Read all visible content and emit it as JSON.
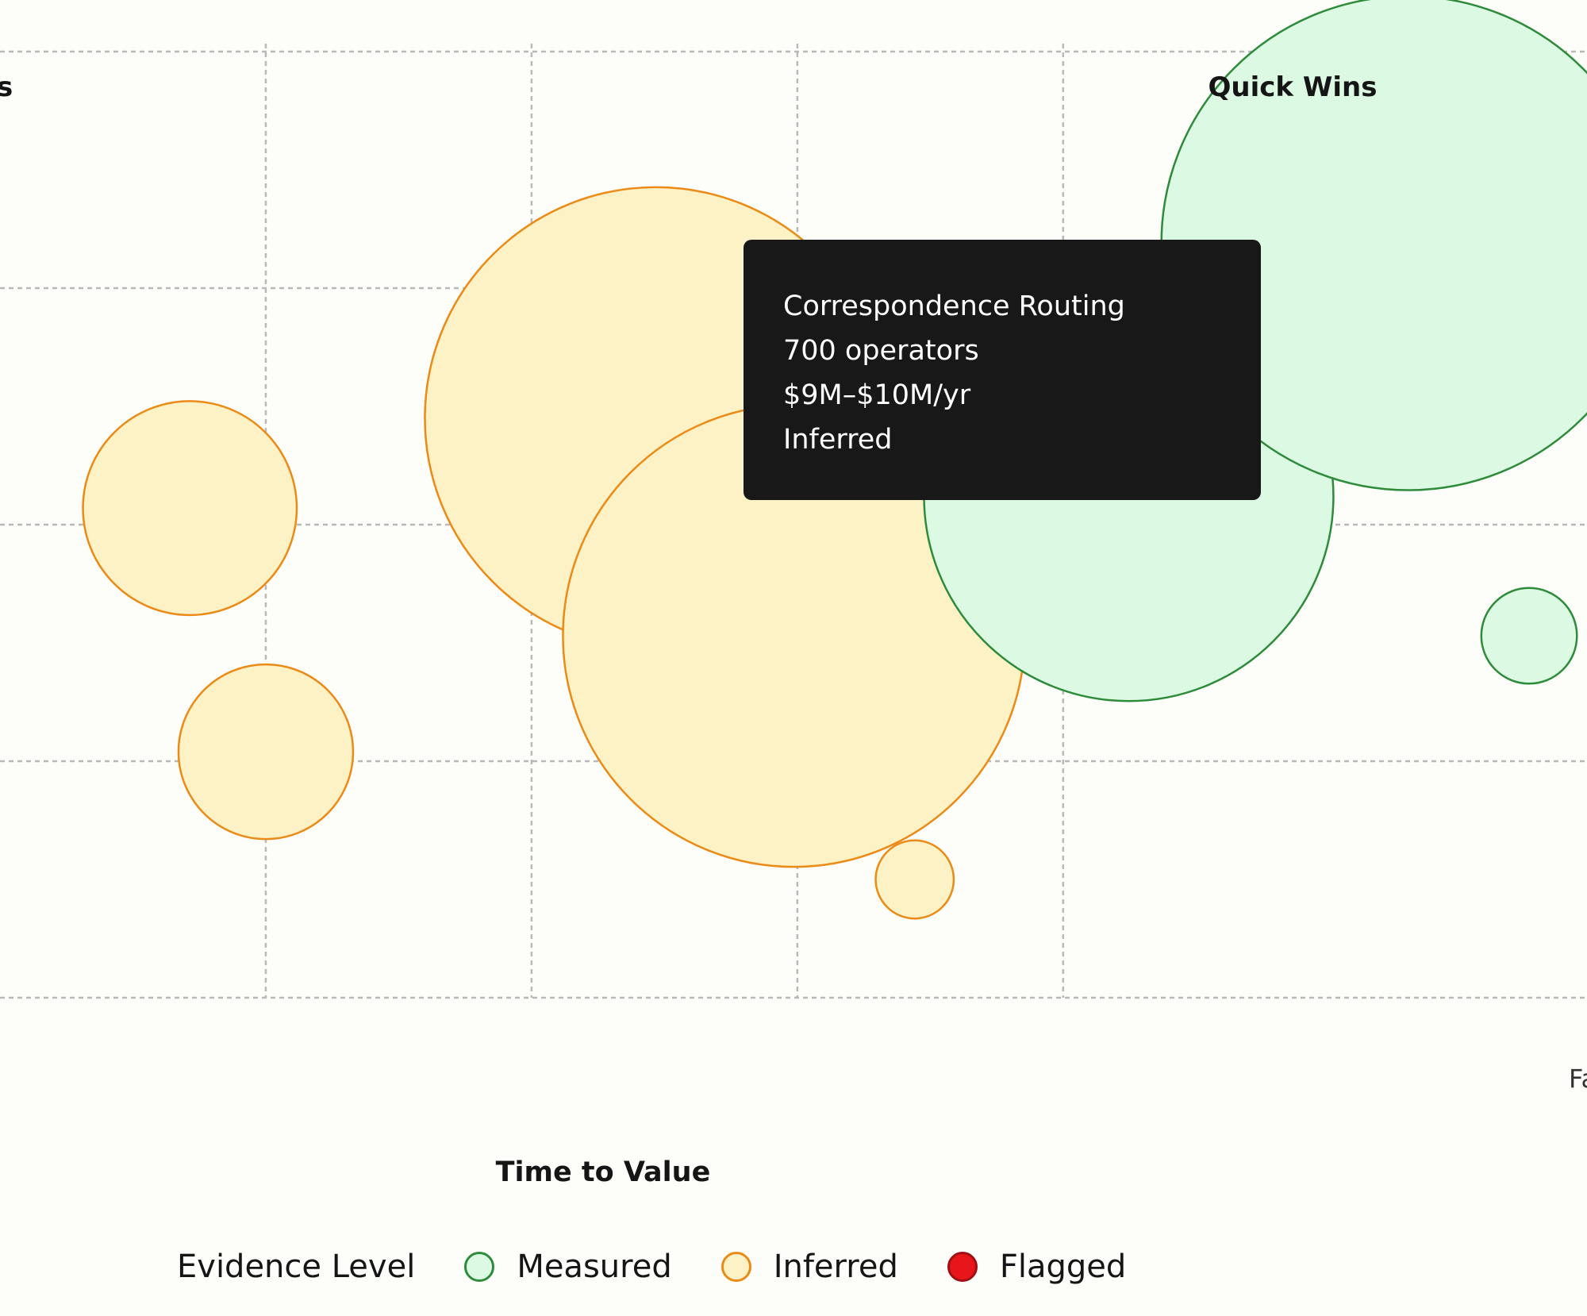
{
  "chart_data": {
    "type": "scatter",
    "title": "",
    "xlabel": "Time to Value",
    "ylabel": "",
    "x_end_label": "Fa",
    "quadrant_labels": {
      "top_left": "s",
      "top_right": "Quick Wins"
    },
    "grid": true,
    "xlim": [
      0,
      4.6
    ],
    "ylim": [
      0,
      4
    ],
    "legend": {
      "title": "Evidence Level",
      "position": "bottom",
      "items": [
        {
          "label": "Measured",
          "fill": "#dcfae3",
          "stroke": "#2e8b3a"
        },
        {
          "label": "Inferred",
          "fill": "#fcf2c6",
          "stroke": "#ec8a16"
        },
        {
          "label": "Flagged",
          "fill": "#e8161a",
          "stroke": "#a10f12"
        }
      ]
    },
    "points": [
      {
        "x": 0.55,
        "y": 2.07,
        "size": 150,
        "evidence": "Inferred"
      },
      {
        "x": 0.77,
        "y": 1.04,
        "size": 100,
        "evidence": "Inferred"
      },
      {
        "x": 1.9,
        "y": 2.45,
        "size": 700,
        "evidence": "Inferred"
      },
      {
        "x": 2.3,
        "y": 1.53,
        "size": 700,
        "evidence": "Inferred"
      },
      {
        "x": 2.65,
        "y": 0.5,
        "size": 20,
        "evidence": "Inferred"
      },
      {
        "x": 3.27,
        "y": 2.12,
        "size": 550,
        "evidence": "Measured"
      },
      {
        "x": 4.08,
        "y": 3.19,
        "size": 800,
        "evidence": "Measured"
      },
      {
        "x": 4.43,
        "y": 1.53,
        "size": 30,
        "evidence": "Measured"
      }
    ],
    "tooltip": {
      "name": "Correspondence Routing",
      "operators": "700 operators",
      "value": "$9M–$10M/yr",
      "evidence": "Inferred"
    }
  }
}
